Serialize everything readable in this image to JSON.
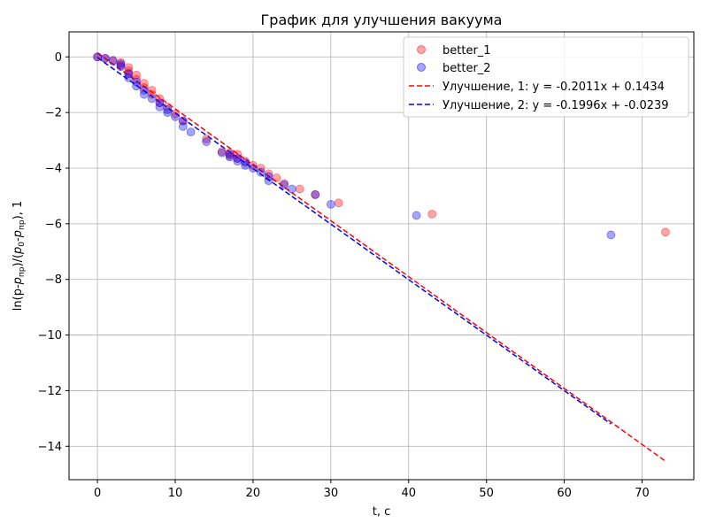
{
  "chart_data": {
    "type": "scatter",
    "title": "График для улучшения вакуума",
    "xlabel": "t, с",
    "ylabel": "ln(p-pпр)/(p0-pпр), 1",
    "xlim": [
      -3.65,
      76.65
    ],
    "ylim": [
      -15.2,
      0.9
    ],
    "xticks": [
      0,
      10,
      20,
      30,
      40,
      50,
      60,
      70
    ],
    "yticks": [
      0,
      -2,
      -4,
      -6,
      -8,
      -10,
      -12,
      -14
    ],
    "xtick_labels": [
      "0",
      "10",
      "20",
      "30",
      "40",
      "50",
      "60",
      "70"
    ],
    "ytick_labels": [
      "0",
      "−2",
      "−4",
      "−6",
      "−8",
      "−10",
      "−12",
      "−14"
    ],
    "grid": true,
    "legend_position": "top-right",
    "scatter_series": [
      {
        "name": "better_1",
        "color": "#ff0000",
        "x": [
          0,
          1,
          2,
          3,
          3,
          4,
          4,
          4,
          5,
          5,
          6,
          6,
          7,
          7,
          8,
          8,
          9,
          10,
          11,
          14,
          16,
          17,
          17,
          18,
          18,
          19,
          20,
          21,
          22,
          23,
          24,
          26,
          28,
          31,
          43,
          73
        ],
        "y": [
          0,
          -0.05,
          -0.12,
          -0.2,
          -0.3,
          -0.38,
          -0.5,
          -0.6,
          -0.65,
          -0.8,
          -0.95,
          -1.1,
          -1.2,
          -1.35,
          -1.5,
          -1.65,
          -1.8,
          -2.05,
          -2.3,
          -2.95,
          -3.4,
          -3.45,
          -3.55,
          -3.5,
          -3.65,
          -3.75,
          -3.9,
          -4.0,
          -4.2,
          -4.35,
          -4.55,
          -4.75,
          -4.95,
          -5.25,
          -5.65,
          -6.3
        ]
      },
      {
        "name": "better_2",
        "color": "#0000ff",
        "x": [
          0,
          1,
          2,
          3,
          3,
          4,
          4,
          5,
          5,
          6,
          6,
          7,
          8,
          8,
          9,
          9,
          10,
          11,
          11,
          12,
          14,
          16,
          17,
          17,
          18,
          18,
          19,
          19,
          20,
          21,
          22,
          22,
          24,
          25,
          28,
          30,
          41,
          66
        ],
        "y": [
          0,
          -0.05,
          -0.15,
          -0.25,
          -0.35,
          -0.6,
          -0.75,
          -0.9,
          -1.05,
          -1.2,
          -1.35,
          -1.5,
          -1.65,
          -1.8,
          -1.9,
          -2.0,
          -2.15,
          -2.3,
          -2.5,
          -2.7,
          -3.05,
          -3.45,
          -3.5,
          -3.6,
          -3.65,
          -3.75,
          -3.8,
          -3.9,
          -4.0,
          -4.15,
          -4.3,
          -4.45,
          -4.6,
          -4.75,
          -4.95,
          -5.3,
          -5.7,
          -6.4
        ]
      }
    ],
    "fit_series": [
      {
        "name": "Улучшение, 1: y = -0.2011x + 0.1434",
        "color": "#ff0000",
        "slope": -0.2011,
        "intercept": 0.1434,
        "x_range": [
          0,
          73
        ]
      },
      {
        "name": "Улучшение, 2: y = -0.1996x + -0.0239",
        "color": "#0000ff",
        "slope": -0.1996,
        "intercept": -0.0239,
        "x_range": [
          0,
          66
        ]
      }
    ]
  }
}
